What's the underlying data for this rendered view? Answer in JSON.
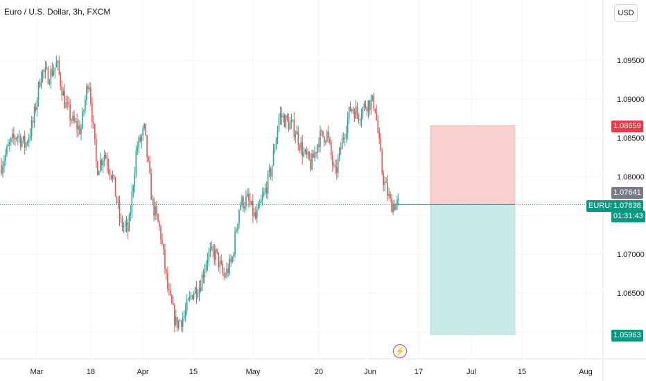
{
  "title": "Euro / U.S. Dollar, 3h, FXCM",
  "currency_button": "USD",
  "symbol": "EURUSD",
  "last_price": "1.07638",
  "countdown": "01:31:43",
  "price_tag_gray": "1.07641",
  "stop_loss_label": "1.08659",
  "take_profit_label": "1.05963",
  "colors": {
    "up": "#26a69a",
    "down": "#ef5350",
    "stop_fill": "#f8d0cf",
    "target_fill": "#c9e9e6",
    "accent_red": "#f23645",
    "accent_green": "#089981",
    "gray_tag": "#787b86"
  },
  "chart_data": {
    "type": "candlestick",
    "y_ticks": [
      "1.09500",
      "1.09000",
      "1.08500",
      "1.08000",
      "1.07000",
      "1.06500"
    ],
    "x_ticks": [
      "Mar",
      "18",
      "Apr",
      "15",
      "May",
      "20",
      "Jun",
      "17",
      "Jul",
      "15",
      "Aug"
    ],
    "ylim": [
      1.0585,
      1.1005
    ],
    "grid": true,
    "ohlc_close_series": [
      {
        "x": "Feb 27",
        "y": 1.0815
      },
      {
        "x": "Mar 1",
        "y": 1.084
      },
      {
        "x": "Mar 4",
        "y": 1.0855
      },
      {
        "x": "Mar 6",
        "y": 1.084
      },
      {
        "x": "Mar 7",
        "y": 1.087
      },
      {
        "x": "Mar 8",
        "y": 1.0935
      },
      {
        "x": "Mar 11",
        "y": 1.093
      },
      {
        "x": "Mar 13",
        "y": 1.0945
      },
      {
        "x": "Mar 14",
        "y": 1.0895
      },
      {
        "x": "Mar 18",
        "y": 1.087
      },
      {
        "x": "Mar 20",
        "y": 1.086
      },
      {
        "x": "Mar 21",
        "y": 1.093
      },
      {
        "x": "Mar 22",
        "y": 1.081
      },
      {
        "x": "Mar 26",
        "y": 1.083
      },
      {
        "x": "Mar 28",
        "y": 1.08
      },
      {
        "x": "Apr 1",
        "y": 1.074
      },
      {
        "x": "Apr 2",
        "y": 1.073
      },
      {
        "x": "Apr 4",
        "y": 1.0835
      },
      {
        "x": "Apr 8",
        "y": 1.086
      },
      {
        "x": "Apr 10",
        "y": 1.0765
      },
      {
        "x": "Apr 11",
        "y": 1.073
      },
      {
        "x": "Apr 12",
        "y": 1.065
      },
      {
        "x": "Apr 15",
        "y": 1.061
      },
      {
        "x": "Apr 16",
        "y": 1.062
      },
      {
        "x": "Apr 18",
        "y": 1.065
      },
      {
        "x": "Apr 22",
        "y": 1.066
      },
      {
        "x": "Apr 24",
        "y": 1.07
      },
      {
        "x": "Apr 26",
        "y": 1.07
      },
      {
        "x": "Apr 30",
        "y": 1.067
      },
      {
        "x": "May 1",
        "y": 1.069
      },
      {
        "x": "May 3",
        "y": 1.0765
      },
      {
        "x": "May 6",
        "y": 1.077
      },
      {
        "x": "May 9",
        "y": 1.0745
      },
      {
        "x": "May 10",
        "y": 1.0775
      },
      {
        "x": "May 14",
        "y": 1.081
      },
      {
        "x": "May 15",
        "y": 1.088
      },
      {
        "x": "May 16",
        "y": 1.087
      },
      {
        "x": "May 20",
        "y": 1.086
      },
      {
        "x": "May 22",
        "y": 1.083
      },
      {
        "x": "May 23",
        "y": 1.0815
      },
      {
        "x": "May 24",
        "y": 1.085
      },
      {
        "x": "May 27",
        "y": 1.0855
      },
      {
        "x": "May 29",
        "y": 1.08
      },
      {
        "x": "May 30",
        "y": 1.085
      },
      {
        "x": "Jun 3",
        "y": 1.089
      },
      {
        "x": "Jun 4",
        "y": 1.088
      },
      {
        "x": "Jun 5",
        "y": 1.0895
      },
      {
        "x": "Jun 6",
        "y": 1.0895
      },
      {
        "x": "Jun 7",
        "y": 1.08
      },
      {
        "x": "Jun 10",
        "y": 1.0765
      },
      {
        "x": "Jun 11",
        "y": 1.0764
      }
    ],
    "position": {
      "type": "short",
      "entry": 1.07641,
      "stop": 1.08659,
      "target": 1.05963
    }
  }
}
